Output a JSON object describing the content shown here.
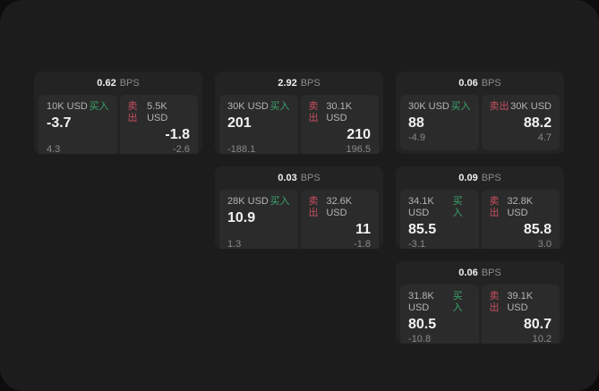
{
  "labels": {
    "bps_unit": "BPS",
    "buy": "买入",
    "sell": "卖出"
  },
  "colors": {
    "buy": "#3aa56b",
    "sell": "#c74e5f",
    "page_bg": "#0d0d0d",
    "app_bg": "#1c1c1c",
    "card_bg": "#232323",
    "panel_bg": "#2b2b2b"
  },
  "cards": [
    {
      "row": 1,
      "col": 1,
      "bps": "0.62",
      "buy": {
        "amount": "10K USD",
        "value": "-3.7",
        "delta": "4.3"
      },
      "sell": {
        "amount": "5.5K USD",
        "value": "-1.8",
        "delta": "-2.6"
      }
    },
    {
      "row": 1,
      "col": 2,
      "bps": "2.92",
      "buy": {
        "amount": "30K USD",
        "value": "201",
        "delta": "-188.1"
      },
      "sell": {
        "amount": "30.1K USD",
        "value": "210",
        "delta": "196.5"
      }
    },
    {
      "row": 1,
      "col": 3,
      "bps": "0.06",
      "buy": {
        "amount": "30K USD",
        "value": "88",
        "delta": "-4.9"
      },
      "sell": {
        "amount": "30K USD",
        "value": "88.2",
        "delta": "4.7"
      }
    },
    {
      "row": 2,
      "col": 2,
      "bps": "0.03",
      "buy": {
        "amount": "28K USD",
        "value": "10.9",
        "delta": "1.3"
      },
      "sell": {
        "amount": "32.6K USD",
        "value": "11",
        "delta": "-1.8"
      }
    },
    {
      "row": 2,
      "col": 3,
      "bps": "0.09",
      "buy": {
        "amount": "34.1K USD",
        "value": "85.5",
        "delta": "-3.1"
      },
      "sell": {
        "amount": "32.8K USD",
        "value": "85.8",
        "delta": "3.0"
      }
    },
    {
      "row": 3,
      "col": 3,
      "bps": "0.06",
      "buy": {
        "amount": "31.8K USD",
        "value": "80.5",
        "delta": "-10.8"
      },
      "sell": {
        "amount": "39.1K USD",
        "value": "80.7",
        "delta": "10.2"
      }
    }
  ]
}
